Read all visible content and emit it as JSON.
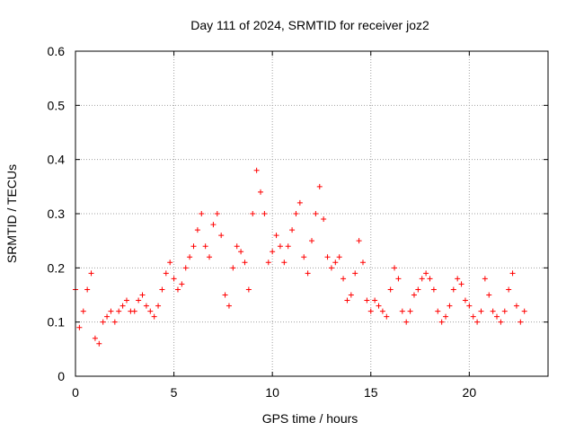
{
  "chart_data": {
    "type": "scatter",
    "title": "Day 111 of 2024, SRMTID for receiver joz2",
    "xlabel": "GPS time / hours",
    "ylabel": "SRMTID / TECUs",
    "xlim": [
      0,
      24
    ],
    "ylim": [
      0,
      0.6
    ],
    "xticks": [
      0,
      5,
      10,
      15,
      20
    ],
    "yticks": [
      0,
      0.1,
      0.2,
      0.3,
      0.4,
      0.5,
      0.6
    ],
    "xtick_labels": [
      "0",
      "5",
      "10",
      "15",
      "20"
    ],
    "ytick_labels": [
      "0",
      "0.1",
      "0.2",
      "0.3",
      "0.4",
      "0.5",
      "0.6"
    ],
    "grid": true,
    "marker": "+",
    "color": "#ff0000",
    "series": [
      {
        "name": "SRMTID",
        "x": [
          0.0,
          0.2,
          0.4,
          0.6,
          0.8,
          1.0,
          1.2,
          1.4,
          1.6,
          1.8,
          2.0,
          2.2,
          2.4,
          2.6,
          2.8,
          3.0,
          3.2,
          3.4,
          3.6,
          3.8,
          4.0,
          4.2,
          4.4,
          4.6,
          4.8,
          5.0,
          5.2,
          5.4,
          5.6,
          5.8,
          6.0,
          6.2,
          6.4,
          6.6,
          6.8,
          7.0,
          7.2,
          7.4,
          7.6,
          7.8,
          8.0,
          8.2,
          8.4,
          8.6,
          8.8,
          9.0,
          9.2,
          9.4,
          9.6,
          9.8,
          10.0,
          10.2,
          10.4,
          10.6,
          10.8,
          11.0,
          11.2,
          11.4,
          11.6,
          11.8,
          12.0,
          12.2,
          12.4,
          12.6,
          12.8,
          13.0,
          13.2,
          13.4,
          13.6,
          13.8,
          14.0,
          14.2,
          14.4,
          14.6,
          14.8,
          15.0,
          15.2,
          15.4,
          15.6,
          15.8,
          16.0,
          16.2,
          16.4,
          16.6,
          16.8,
          17.0,
          17.2,
          17.4,
          17.6,
          17.8,
          18.0,
          18.2,
          18.4,
          18.6,
          18.8,
          19.0,
          19.2,
          19.4,
          19.6,
          19.8,
          20.0,
          20.2,
          20.4,
          20.6,
          20.8,
          21.0,
          21.2,
          21.4,
          21.6,
          21.8,
          22.0,
          22.2,
          22.4,
          22.6,
          22.8
        ],
        "y": [
          0.16,
          0.09,
          0.12,
          0.16,
          0.19,
          0.07,
          0.06,
          0.1,
          0.11,
          0.12,
          0.1,
          0.12,
          0.13,
          0.14,
          0.12,
          0.12,
          0.14,
          0.15,
          0.13,
          0.12,
          0.11,
          0.13,
          0.16,
          0.19,
          0.21,
          0.18,
          0.16,
          0.17,
          0.2,
          0.22,
          0.24,
          0.27,
          0.3,
          0.24,
          0.22,
          0.28,
          0.3,
          0.26,
          0.15,
          0.13,
          0.2,
          0.24,
          0.23,
          0.21,
          0.16,
          0.3,
          0.38,
          0.34,
          0.3,
          0.21,
          0.23,
          0.26,
          0.24,
          0.21,
          0.24,
          0.27,
          0.3,
          0.32,
          0.22,
          0.19,
          0.25,
          0.3,
          0.35,
          0.29,
          0.22,
          0.2,
          0.21,
          0.22,
          0.18,
          0.14,
          0.15,
          0.19,
          0.25,
          0.21,
          0.14,
          0.12,
          0.14,
          0.13,
          0.12,
          0.11,
          0.16,
          0.2,
          0.18,
          0.12,
          0.1,
          0.12,
          0.15,
          0.16,
          0.18,
          0.19,
          0.18,
          0.16,
          0.12,
          0.1,
          0.11,
          0.13,
          0.16,
          0.18,
          0.17,
          0.14,
          0.13,
          0.11,
          0.1,
          0.12,
          0.18,
          0.15,
          0.12,
          0.11,
          0.1,
          0.12,
          0.16,
          0.19,
          0.13,
          0.1,
          0.12
        ]
      }
    ]
  }
}
